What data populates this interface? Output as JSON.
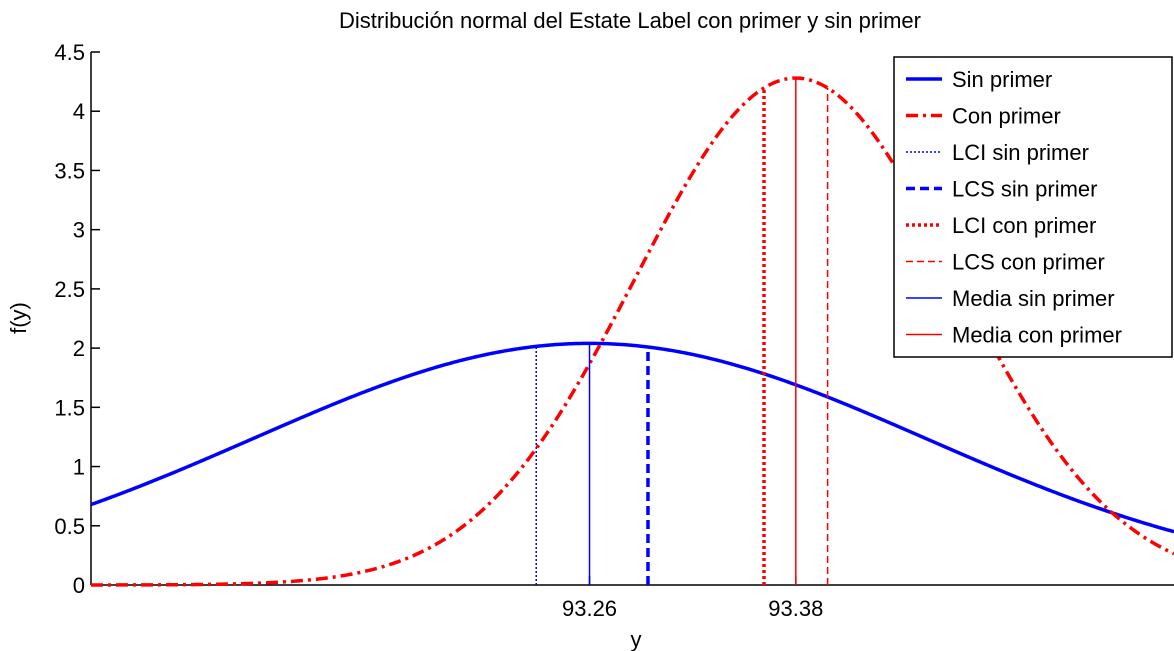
{
  "chart_data": {
    "type": "line",
    "title": "Distribución normal del Estate Label con primer y sin primer",
    "xlabel": "y",
    "ylabel": "f(y)",
    "xlim": [
      92.97,
      93.6
    ],
    "ylim": [
      0,
      4.5
    ],
    "yticks": [
      0,
      0.5,
      1,
      1.5,
      2,
      2.5,
      3,
      3.5,
      4,
      4.5
    ],
    "ytick_labels": [
      "0",
      "0.5",
      "1",
      "1.5",
      "2",
      "2.5",
      "3",
      "3.5",
      "4",
      "4.5"
    ],
    "xticks": [
      93.26,
      93.38
    ],
    "xtick_labels": [
      "93.26",
      "93.38"
    ],
    "legend_position": "top-right",
    "series": [
      {
        "name": "Sin primer",
        "kind": "normal",
        "mean": 93.26,
        "peak": 2.04,
        "color": "#0000ff",
        "style": "solid-thick"
      },
      {
        "name": "Con primer",
        "kind": "normal",
        "mean": 93.38,
        "peak": 4.28,
        "color": "#ff0000",
        "style": "dashdot-thick"
      },
      {
        "name": "LCI sin primer",
        "kind": "vline",
        "x": 93.229,
        "color": "#0000ff",
        "style": "dotted"
      },
      {
        "name": "LCS sin primer",
        "kind": "vline",
        "x": 93.294,
        "color": "#0000ff",
        "style": "dashed-thick"
      },
      {
        "name": "LCI con primer",
        "kind": "vline",
        "x": 93.3615,
        "color": "#ff0000",
        "style": "dotted-thick"
      },
      {
        "name": "LCS con primer",
        "kind": "vline",
        "x": 93.3985,
        "color": "#ff0000",
        "style": "dashed"
      },
      {
        "name": "Media sin primer",
        "kind": "vline",
        "x": 93.26,
        "color": "#0000ff",
        "style": "solid"
      },
      {
        "name": "Media con primer",
        "kind": "vline",
        "x": 93.38,
        "color": "#ff0000",
        "style": "solid"
      }
    ]
  }
}
